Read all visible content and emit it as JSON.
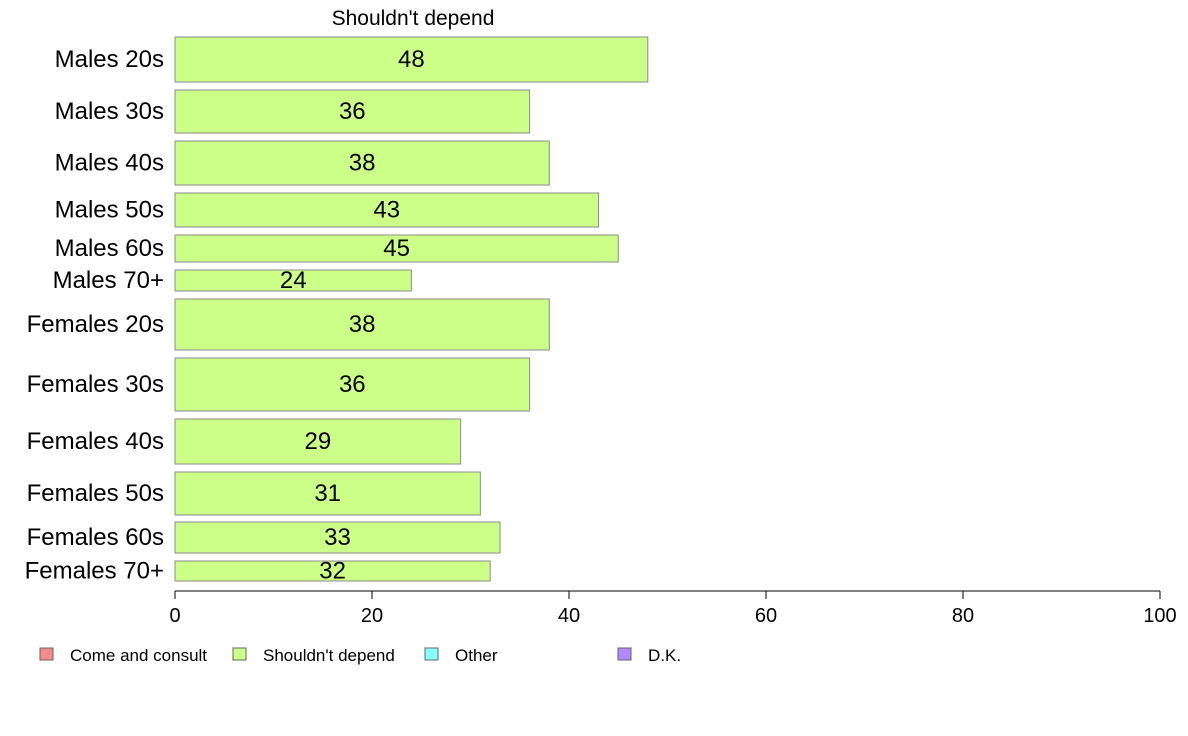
{
  "chart_data": {
    "type": "bar",
    "orientation": "horizontal",
    "title": "Shouldn't depend",
    "categories": [
      "Males 20s",
      "Males 30s",
      "Males 40s",
      "Males 50s",
      "Males 60s",
      "Males 70+",
      "Females 20s",
      "Females 30s",
      "Females 40s",
      "Females 50s",
      "Females 60s",
      "Females 70+"
    ],
    "series": [
      {
        "name": "Shouldn't depend",
        "color": "#ccff88",
        "values": [
          48,
          36,
          38,
          43,
          45,
          24,
          38,
          36,
          29,
          31,
          33,
          32
        ]
      }
    ],
    "xlim": [
      0,
      100
    ],
    "xticks": [
      0,
      20,
      40,
      60,
      80,
      100
    ],
    "grid": false,
    "legend": {
      "position": "bottom-left",
      "entries": [
        {
          "label": "Come and consult",
          "color": "#f28b8b"
        },
        {
          "label": "Shouldn't depend",
          "color": "#ccff88"
        },
        {
          "label": "Other",
          "color": "#88ffff"
        },
        {
          "label": "D.K.",
          "color": "#b388ff"
        }
      ]
    }
  }
}
